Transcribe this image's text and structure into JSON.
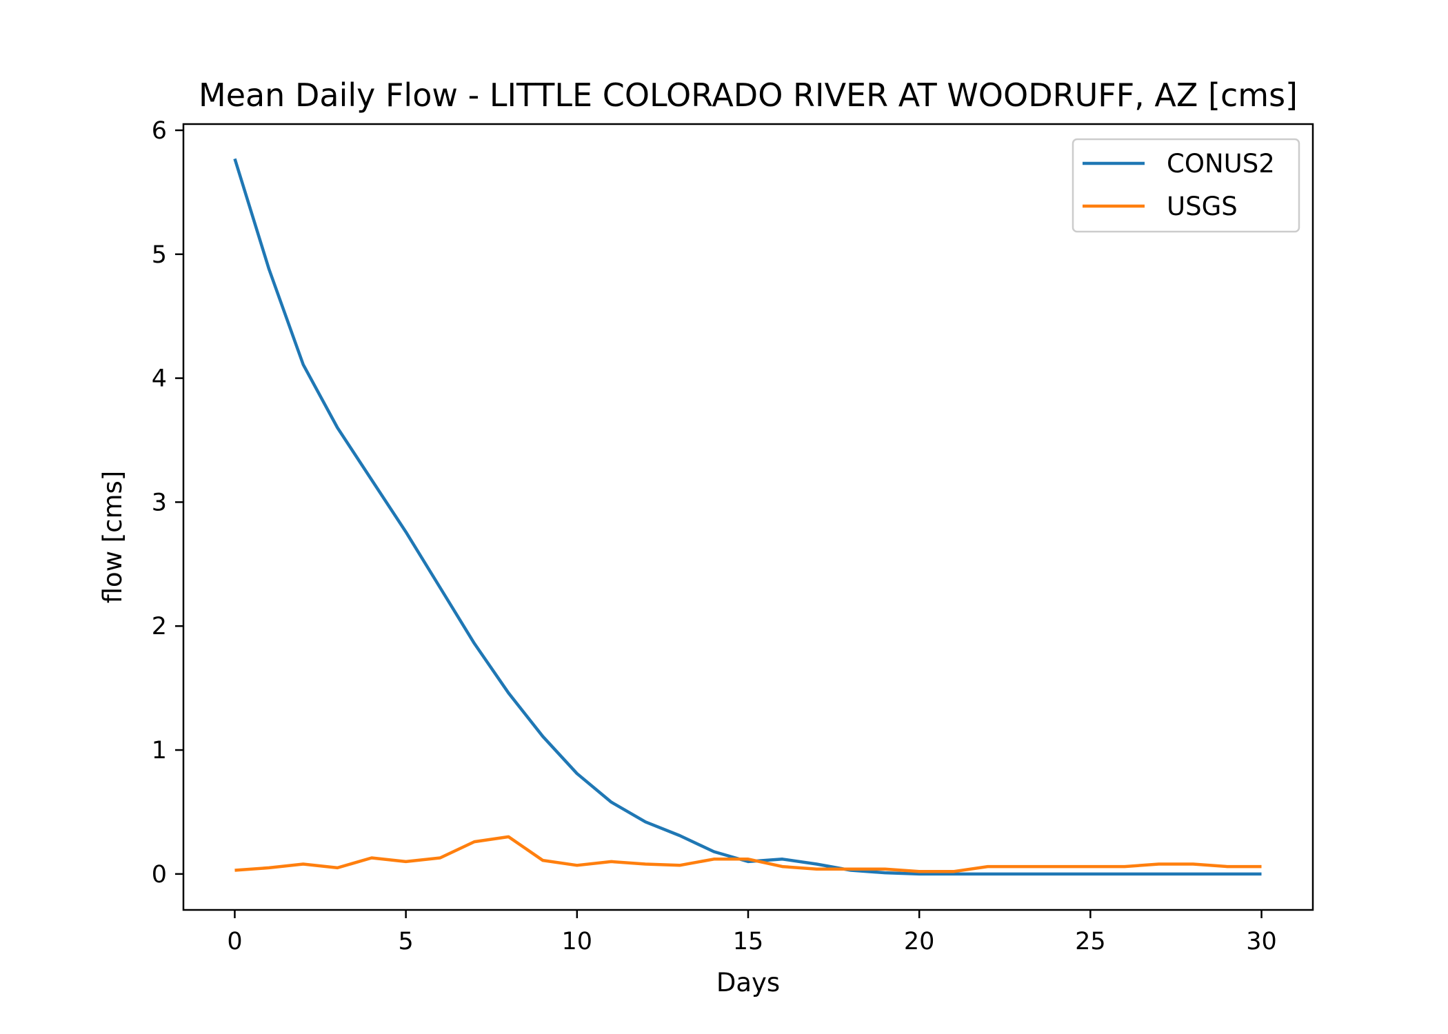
{
  "chart_data": {
    "type": "line",
    "title": "Mean Daily Flow - LITTLE COLORADO RIVER AT WOODRUFF, AZ [cms]",
    "xlabel": "Days",
    "ylabel": "flow [cms]",
    "xlim": [
      -1.5,
      31.5
    ],
    "ylim": [
      -0.29,
      6.05
    ],
    "xticks": [
      0,
      5,
      10,
      15,
      20,
      25,
      30
    ],
    "yticks": [
      0,
      1,
      2,
      3,
      4,
      5,
      6
    ],
    "grid": false,
    "legend": "top-right",
    "series": [
      {
        "name": "CONUS2",
        "color": "#1f77b4",
        "x": [
          0,
          1,
          2,
          3,
          4,
          5,
          6,
          7,
          8,
          9,
          10,
          11,
          12,
          13,
          14,
          15,
          16,
          17,
          18,
          19,
          20,
          21,
          22,
          23,
          24,
          25,
          26,
          27,
          28,
          29,
          30
        ],
        "values": [
          5.77,
          4.88,
          4.11,
          3.6,
          3.18,
          2.76,
          2.31,
          1.86,
          1.46,
          1.11,
          0.81,
          0.58,
          0.42,
          0.31,
          0.18,
          0.1,
          0.12,
          0.08,
          0.03,
          0.01,
          0.0,
          0.0,
          0.0,
          0.0,
          0.0,
          0.0,
          0.0,
          0.0,
          0.0,
          0.0,
          0.0
        ]
      },
      {
        "name": "USGS",
        "color": "#ff7f0e",
        "x": [
          0,
          1,
          2,
          3,
          4,
          5,
          6,
          7,
          8,
          9,
          10,
          11,
          12,
          13,
          14,
          15,
          16,
          17,
          18,
          19,
          20,
          21,
          22,
          23,
          24,
          25,
          26,
          27,
          28,
          29,
          30
        ],
        "values": [
          0.03,
          0.05,
          0.08,
          0.05,
          0.13,
          0.1,
          0.13,
          0.26,
          0.3,
          0.11,
          0.07,
          0.1,
          0.08,
          0.07,
          0.12,
          0.12,
          0.06,
          0.04,
          0.04,
          0.04,
          0.02,
          0.02,
          0.06,
          0.06,
          0.06,
          0.06,
          0.06,
          0.08,
          0.08,
          0.06,
          0.06
        ]
      }
    ]
  }
}
